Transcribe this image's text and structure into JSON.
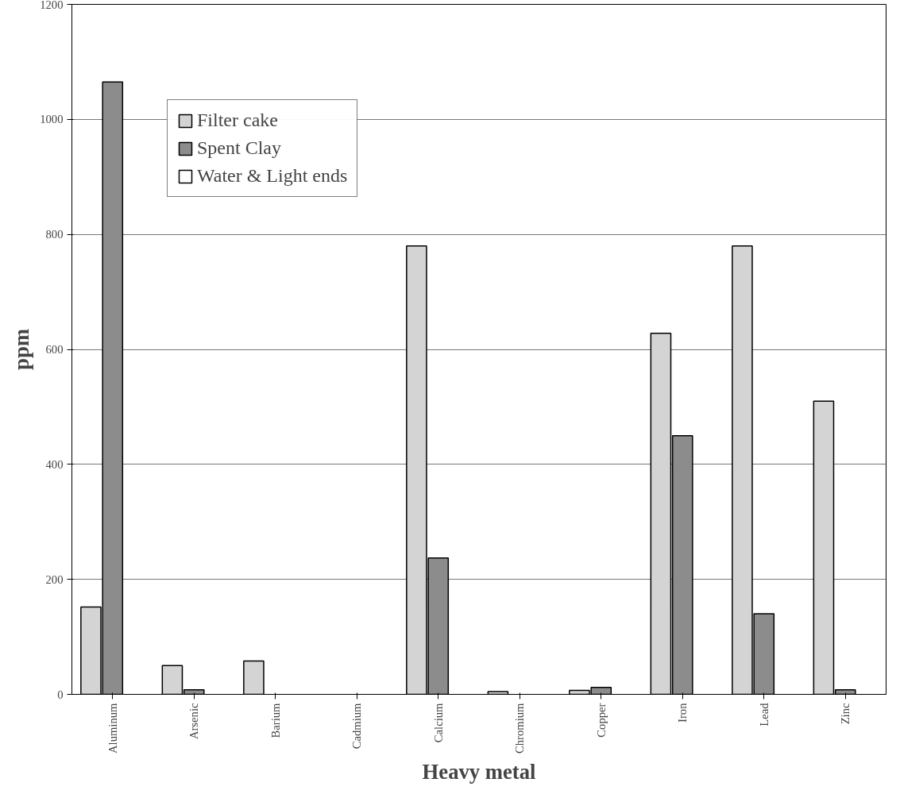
{
  "chart_data": {
    "type": "bar",
    "xlabel": "Heavy metal",
    "ylabel": "ppm",
    "categories": [
      "Aluminum",
      "Arsenic",
      "Barium",
      "Cadmium",
      "Calcium",
      "Chromium",
      "Copper",
      "Iron",
      "Lead",
      "Zinc"
    ],
    "series": [
      {
        "name": "Filter cake",
        "color": "#d4d4d4",
        "values": [
          152,
          50,
          58,
          null,
          780,
          5,
          7,
          628,
          780,
          510
        ]
      },
      {
        "name": "Spent Clay",
        "color": "#8c8c8c",
        "values": [
          1065,
          8,
          null,
          null,
          237,
          null,
          12,
          450,
          140,
          8
        ]
      },
      {
        "name": "Water & Light ends",
        "color": "#ffffff",
        "values": [
          null,
          null,
          null,
          null,
          null,
          null,
          null,
          null,
          null,
          null
        ]
      }
    ],
    "ylim": [
      0,
      1200
    ],
    "yticks": [
      0,
      200,
      400,
      600,
      800,
      1000,
      1200
    ],
    "grid": "y",
    "legend": "top left"
  }
}
